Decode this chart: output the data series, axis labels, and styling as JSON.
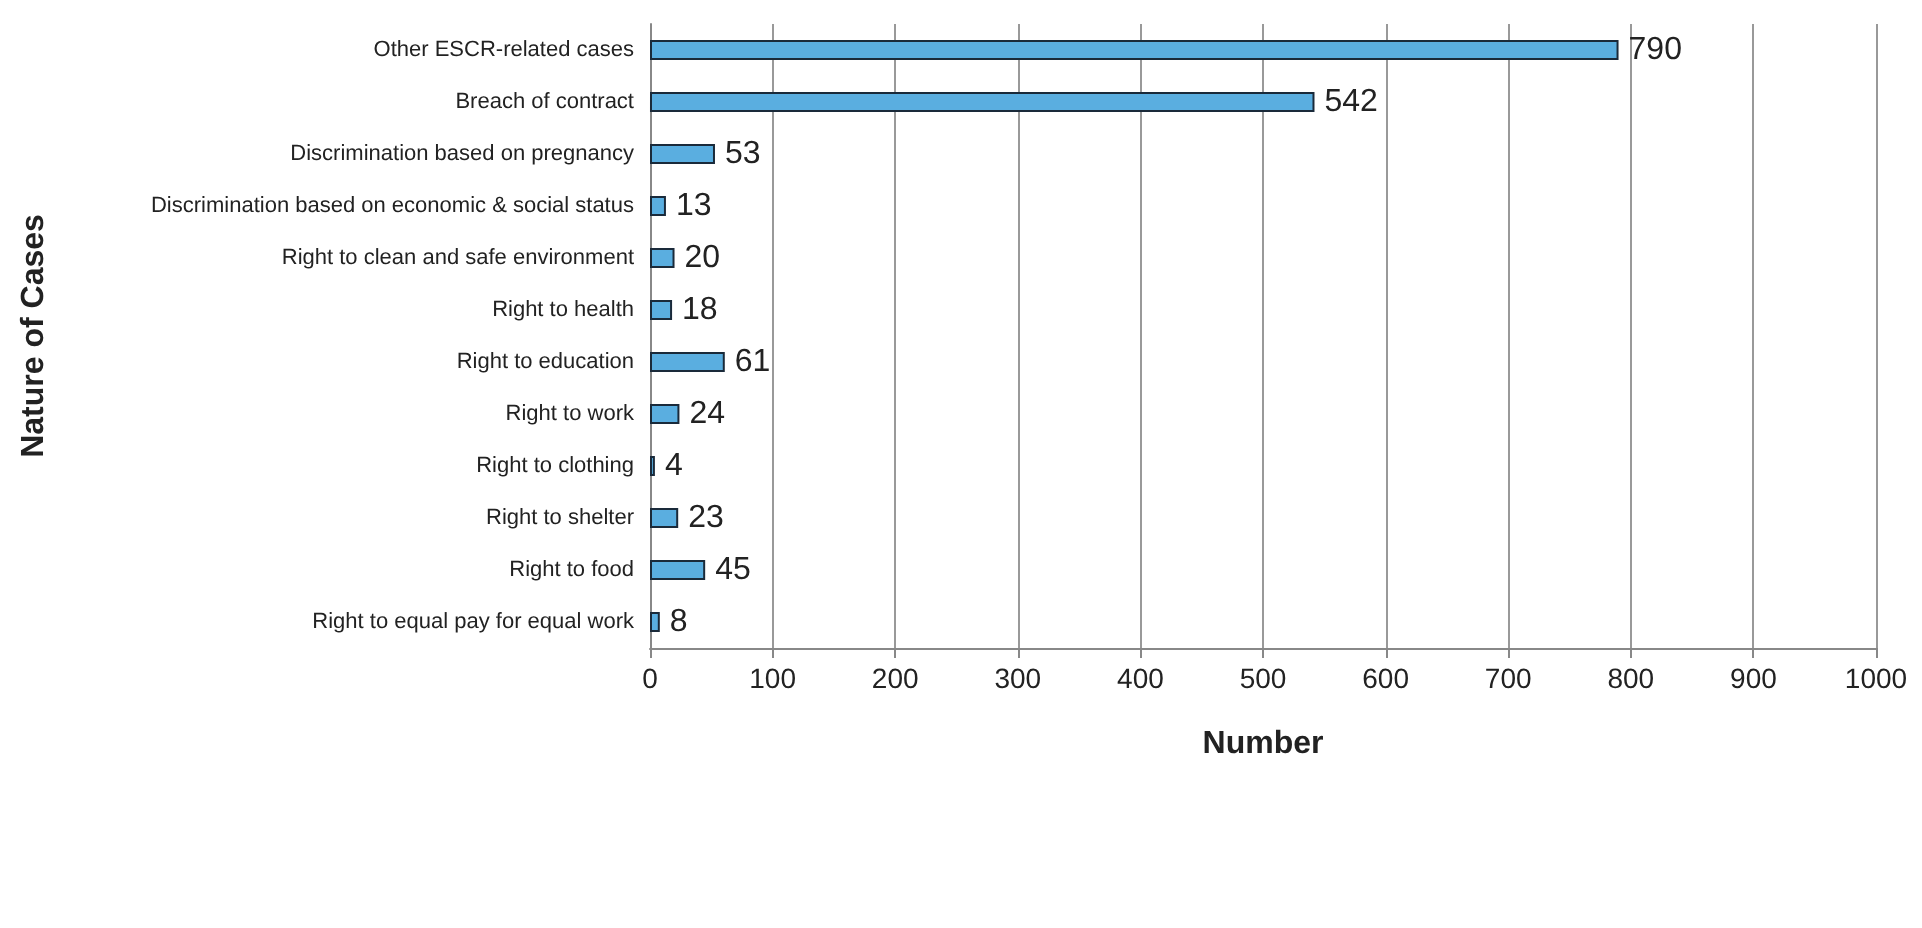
{
  "chart_data": {
    "type": "bar",
    "orientation": "horizontal",
    "xlabel": "Number",
    "ylabel": "Nature of Cases",
    "categories": [
      "Other ESCR-related cases",
      "Breach of contract",
      "Discrimination based on pregnancy",
      "Discrimination based on economic & social status",
      "Right to clean and safe environment",
      "Right to health",
      "Right to education",
      "Right to work",
      "Right to clothing",
      "Right to shelter",
      "Right to food",
      "Right to equal pay for equal work"
    ],
    "values": [
      790,
      542,
      53,
      13,
      20,
      18,
      61,
      24,
      4,
      23,
      45,
      8
    ],
    "color": "#5aaee0",
    "xlim": [
      0,
      1000
    ],
    "xticks": [
      0,
      100,
      200,
      300,
      400,
      500,
      600,
      700,
      800,
      900,
      1000
    ],
    "grid": "x",
    "data_labels": true
  }
}
